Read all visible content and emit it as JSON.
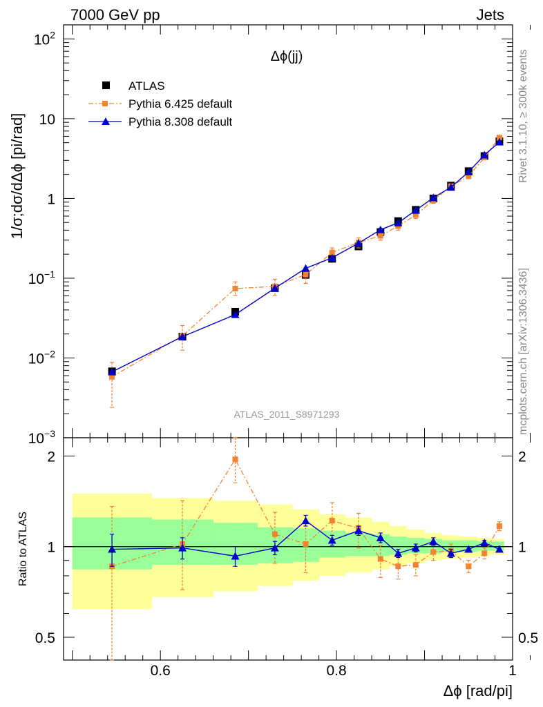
{
  "header": {
    "left": "7000 GeV pp",
    "right": "Jets",
    "side_top": "Rivet 3.1.10, ≥ 300k events",
    "side_bottom": "mcplots.cern.ch [arXiv:1306.3436]"
  },
  "chart_data": {
    "type": "line",
    "title": "Δϕ(jj)",
    "watermark": "ATLAS_2011_S8971293",
    "xlabel": "Δϕ [rad/pi]",
    "ylabel": "1/σ;dσ/dΔϕ [pi/rad]",
    "ratio_ylabel": "Ratio to ATLAS",
    "xlim": [
      0.49,
      1.0
    ],
    "ylim": [
      0.001,
      150
    ],
    "yscale": "log",
    "ratio_ylim": [
      0.42,
      2.3
    ],
    "ratio_yscale": "log",
    "x_ticks": [
      "0.6",
      "0.8",
      "1"
    ],
    "y_ticks": [
      {
        "v": 0.001,
        "base": "10",
        "exp": "−3"
      },
      {
        "v": 0.01,
        "base": "10",
        "exp": "−2"
      },
      {
        "v": 0.1,
        "base": "10",
        "exp": "−1"
      },
      {
        "v": 1,
        "base": "1",
        "exp": ""
      },
      {
        "v": 10,
        "base": "10",
        "exp": ""
      },
      {
        "v": 100,
        "base": "10",
        "exp": "2"
      }
    ],
    "ratio_ticks": [
      "0.5",
      "1",
      "2"
    ],
    "legend_position": "top-left",
    "bins": [
      0.5,
      0.59,
      0.66,
      0.71,
      0.75,
      0.78,
      0.81,
      0.84,
      0.86,
      0.88,
      0.9,
      0.92,
      0.94,
      0.96,
      0.975,
      0.99
    ],
    "x": [
      0.545,
      0.625,
      0.685,
      0.73,
      0.765,
      0.795,
      0.825,
      0.85,
      0.87,
      0.89,
      0.91,
      0.93,
      0.95,
      0.968,
      0.985
    ],
    "band_inner": [
      [
        0.84,
        1.25
      ],
      [
        0.87,
        1.23
      ],
      [
        0.87,
        1.2
      ],
      [
        0.88,
        1.16
      ],
      [
        0.89,
        1.15
      ],
      [
        0.92,
        1.13
      ],
      [
        0.93,
        1.11
      ],
      [
        0.93,
        1.1
      ],
      [
        0.94,
        1.08
      ],
      [
        0.95,
        1.07
      ],
      [
        0.95,
        1.06
      ],
      [
        0.96,
        1.05
      ],
      [
        0.96,
        1.05
      ],
      [
        0.97,
        1.04
      ],
      [
        0.97,
        1.04
      ]
    ],
    "band_outer": [
      [
        0.62,
        1.5
      ],
      [
        0.68,
        1.45
      ],
      [
        0.71,
        1.42
      ],
      [
        0.74,
        1.38
      ],
      [
        0.77,
        1.33
      ],
      [
        0.8,
        1.28
      ],
      [
        0.82,
        1.25
      ],
      [
        0.84,
        1.21
      ],
      [
        0.86,
        1.17
      ],
      [
        0.88,
        1.14
      ],
      [
        0.9,
        1.11
      ],
      [
        0.91,
        1.09
      ],
      [
        0.92,
        1.08
      ],
      [
        0.93,
        1.07
      ],
      [
        0.94,
        1.06
      ]
    ],
    "series": [
      {
        "name": "ATLAS",
        "color": "#000000",
        "marker": "square",
        "values": [
          0.0068,
          0.0185,
          0.038,
          0.075,
          0.11,
          0.175,
          0.25,
          0.38,
          0.52,
          0.72,
          1.0,
          1.45,
          2.2,
          3.4,
          5.2
        ]
      },
      {
        "name": "Pythia 6.425 default",
        "color": "#f58231",
        "marker": "square",
        "line": "dashdot",
        "values": [
          0.0058,
          0.019,
          0.074,
          0.079,
          0.111,
          0.21,
          0.28,
          0.34,
          0.45,
          0.62,
          0.95,
          1.42,
          1.9,
          3.25,
          5.8
        ],
        "yerr_low": [
          0.0034,
          0.0065,
          0.013,
          0.018,
          0.025,
          0.03,
          0.04,
          0.04,
          0.05,
          0.06,
          0.08,
          0.1,
          0.13,
          0.2,
          0.3
        ],
        "yerr_high": [
          0.003,
          0.0065,
          0.016,
          0.018,
          0.025,
          0.03,
          0.04,
          0.04,
          0.05,
          0.06,
          0.08,
          0.1,
          0.13,
          0.2,
          0.3
        ],
        "ratio": [
          0.86,
          1.02,
          1.95,
          1.1,
          1.02,
          1.22,
          1.15,
          0.91,
          0.86,
          0.87,
          0.96,
          0.97,
          0.86,
          0.95,
          1.17
        ],
        "ratio_low": [
          0.45,
          0.3,
          0.32,
          0.22,
          0.2,
          0.18,
          0.16,
          0.12,
          0.08,
          0.07,
          0.06,
          0.05,
          0.04,
          0.04,
          0.04
        ],
        "ratio_high": [
          0.5,
          0.4,
          0.35,
          0.2,
          0.2,
          0.18,
          0.14,
          0.1,
          0.08,
          0.07,
          0.06,
          0.05,
          0.04,
          0.04,
          0.04
        ]
      },
      {
        "name": "Pythia 8.308 default",
        "color": "#0000cc",
        "marker": "triangle",
        "line": "solid",
        "values": [
          0.0067,
          0.0185,
          0.035,
          0.075,
          0.133,
          0.18,
          0.275,
          0.405,
          0.495,
          0.71,
          1.02,
          1.38,
          2.15,
          3.5,
          5.1
        ],
        "yerr_low": [
          0.0004,
          0.0006,
          0.001,
          0.002,
          0.004,
          0.005,
          0.007,
          0.01,
          0.012,
          0.015,
          0.02,
          0.03,
          0.04,
          0.06,
          0.08
        ],
        "yerr_high": [
          0.0004,
          0.0006,
          0.001,
          0.002,
          0.004,
          0.005,
          0.007,
          0.01,
          0.012,
          0.015,
          0.02,
          0.03,
          0.04,
          0.06,
          0.08
        ],
        "ratio": [
          0.98,
          0.99,
          0.93,
          0.99,
          1.22,
          1.05,
          1.13,
          1.07,
          0.95,
          0.99,
          1.04,
          0.95,
          0.98,
          1.03,
          0.98
        ],
        "ratio_low": [
          0.12,
          0.08,
          0.07,
          0.05,
          0.05,
          0.04,
          0.04,
          0.04,
          0.03,
          0.03,
          0.03,
          0.03,
          0.02,
          0.02,
          0.02
        ],
        "ratio_high": [
          0.12,
          0.08,
          0.07,
          0.05,
          0.05,
          0.04,
          0.04,
          0.04,
          0.03,
          0.03,
          0.03,
          0.03,
          0.02,
          0.02,
          0.02
        ]
      }
    ]
  }
}
